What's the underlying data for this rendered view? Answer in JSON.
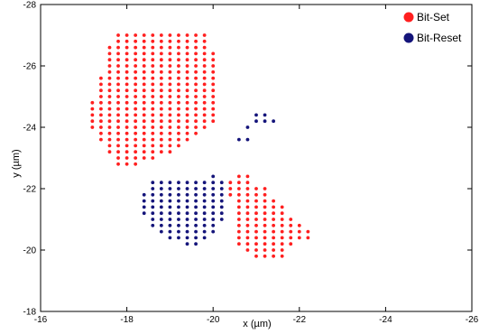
{
  "chart_data": {
    "type": "scatter",
    "xlabel": "x (µm)",
    "ylabel": "y (µm)",
    "xlim": [
      -16,
      -26
    ],
    "ylim": [
      -18,
      -28
    ],
    "x_ticks": [
      "-16",
      "-18",
      "-20",
      "-22",
      "-24",
      "-26"
    ],
    "y_ticks": [
      "-18",
      "-20",
      "-22",
      "-24",
      "-26",
      "-28"
    ],
    "grid": false,
    "legend_position": "top-right",
    "series": [
      {
        "name": "Bit-Set",
        "color": "#ff1f1f",
        "rows": [
          {
            "y": -27.0,
            "x_start": -17.8,
            "x_end": -19.8
          },
          {
            "y": -26.8,
            "x_start": -17.8,
            "x_end": -19.8
          },
          {
            "y": -26.6,
            "x_start": -17.6,
            "x_end": -19.8
          },
          {
            "y": -26.4,
            "x_start": -17.6,
            "x_end": -20.0
          },
          {
            "y": -26.2,
            "x_start": -17.6,
            "x_end": -20.0
          },
          {
            "y": -26.0,
            "x_start": -17.6,
            "x_end": -20.0
          },
          {
            "y": -25.8,
            "x_start": -17.6,
            "x_end": -20.0
          },
          {
            "y": -25.6,
            "x_start": -17.4,
            "x_end": -20.0
          },
          {
            "y": -25.4,
            "x_start": -17.4,
            "x_end": -20.0
          },
          {
            "y": -25.2,
            "x_start": -17.4,
            "x_end": -20.0
          },
          {
            "y": -25.0,
            "x_start": -17.4,
            "x_end": -20.0
          },
          {
            "y": -24.8,
            "x_start": -17.2,
            "x_end": -20.0
          },
          {
            "y": -24.6,
            "x_start": -17.2,
            "x_end": -20.0
          },
          {
            "y": -24.4,
            "x_start": -17.2,
            "x_end": -20.0
          },
          {
            "y": -24.2,
            "x_start": -17.2,
            "x_end": -20.0
          },
          {
            "y": -24.0,
            "x_start": -17.2,
            "x_end": -19.8
          },
          {
            "y": -23.8,
            "x_start": -17.4,
            "x_end": -19.6
          },
          {
            "y": -23.6,
            "x_start": -17.4,
            "x_end": -19.4
          },
          {
            "y": -23.4,
            "x_start": -17.6,
            "x_end": -19.2
          },
          {
            "y": -23.2,
            "x_start": -17.6,
            "x_end": -19.0
          },
          {
            "y": -23.0,
            "x_start": -17.8,
            "x_end": -18.6
          },
          {
            "y": -22.8,
            "x_start": -17.8,
            "x_end": -18.2
          },
          {
            "y": -22.4,
            "x_start": -20.6,
            "x_end": -20.8
          },
          {
            "y": -22.2,
            "x_start": -20.4,
            "x_end": -20.8
          },
          {
            "y": -22.0,
            "x_start": -20.4,
            "x_end": -21.2
          },
          {
            "y": -21.8,
            "x_start": -20.4,
            "x_end": -21.2
          },
          {
            "y": -21.6,
            "x_start": -20.6,
            "x_end": -21.4
          },
          {
            "y": -21.4,
            "x_start": -20.6,
            "x_end": -21.6
          },
          {
            "y": -21.2,
            "x_start": -20.6,
            "x_end": -21.6
          },
          {
            "y": -21.0,
            "x_start": -20.6,
            "x_end": -21.8
          },
          {
            "y": -20.8,
            "x_start": -20.6,
            "x_end": -22.0
          },
          {
            "y": -20.6,
            "x_start": -20.6,
            "x_end": -22.2
          },
          {
            "y": -20.4,
            "x_start": -20.6,
            "x_end": -22.2
          },
          {
            "y": -20.2,
            "x_start": -20.6,
            "x_end": -21.8
          },
          {
            "y": -20.0,
            "x_start": -20.8,
            "x_end": -21.6
          },
          {
            "y": -19.8,
            "x_start": -21.0,
            "x_end": -21.6
          }
        ]
      },
      {
        "name": "Bit-Reset",
        "color": "#14147a",
        "rows": [
          {
            "y": -24.4,
            "x_start": -21.0,
            "x_end": -21.2
          },
          {
            "y": -24.2,
            "x_start": -21.0,
            "x_end": -21.4
          },
          {
            "y": -24.0,
            "x_start": -20.8,
            "x_end": -20.8
          },
          {
            "y": -23.6,
            "x_start": -20.6,
            "x_end": -20.8
          },
          {
            "y": -22.4,
            "x_start": -20.0,
            "x_end": -20.0
          },
          {
            "y": -22.2,
            "x_start": -18.6,
            "x_end": -20.2
          },
          {
            "y": -22.0,
            "x_start": -18.6,
            "x_end": -20.2
          },
          {
            "y": -21.8,
            "x_start": -18.4,
            "x_end": -20.2
          },
          {
            "y": -21.6,
            "x_start": -18.4,
            "x_end": -20.2
          },
          {
            "y": -21.4,
            "x_start": -18.4,
            "x_end": -20.2
          },
          {
            "y": -21.2,
            "x_start": -18.4,
            "x_end": -20.2
          },
          {
            "y": -21.0,
            "x_start": -18.6,
            "x_end": -20.2
          },
          {
            "y": -20.8,
            "x_start": -18.6,
            "x_end": -20.0
          },
          {
            "y": -20.6,
            "x_start": -18.8,
            "x_end": -20.0
          },
          {
            "y": -20.4,
            "x_start": -19.0,
            "x_end": -19.8
          },
          {
            "y": -20.2,
            "x_start": -19.4,
            "x_end": -19.6
          }
        ]
      }
    ]
  }
}
